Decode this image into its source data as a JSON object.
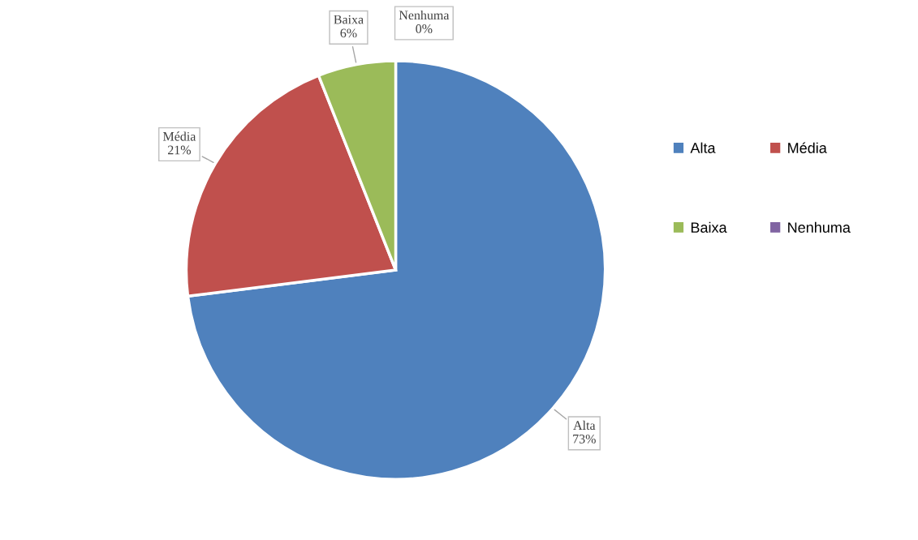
{
  "chart_data": {
    "type": "pie",
    "categories": [
      "Alta",
      "Média",
      "Baixa",
      "Nenhuma"
    ],
    "values": [
      73,
      21,
      6,
      0
    ],
    "colors": [
      "#4f81bd",
      "#c0504d",
      "#9bbb59",
      "#8064a2"
    ],
    "value_labels": [
      "73%",
      "21%",
      "6%",
      "0%"
    ],
    "legend": "right"
  }
}
